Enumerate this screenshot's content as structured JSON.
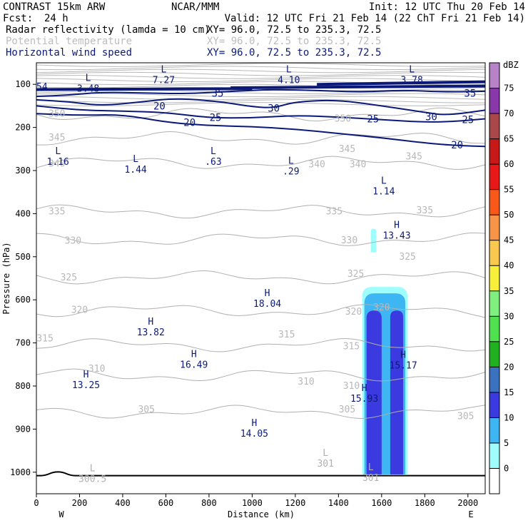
{
  "header": {
    "model": "CONTRAST 15km ARW",
    "center": "NCAR/MMM",
    "init": "Init: 12 UTC Thu 20 Feb 14",
    "fcst_label": "Fcst:",
    "fcst_value": "24 h",
    "valid": "Valid: 12 UTC Fri 21 Feb 14 (22 ChT Fri 21 Feb 14)",
    "fields": [
      {
        "name": "Radar reflectivity (lamda = 10 cm)",
        "xy": "XY=  96.0, 72.5 to 235.3, 72.5",
        "color": "#000000"
      },
      {
        "name": "Potential temperature",
        "xy": "XY=  96.0, 72.5 to 235.3, 72.5",
        "color": "#bdbdbd"
      },
      {
        "name": "Horizontal wind speed",
        "xy": "XY=  96.0, 72.5 to 235.3, 72.5",
        "color": "#0b1a78"
      }
    ]
  },
  "chart_data": {
    "type": "heatmap",
    "xlabel": "Distance (km)",
    "ylabel": "Pressure (hPa)",
    "xlim": [
      0,
      2080
    ],
    "ylim": [
      1050,
      50
    ],
    "x_ticks": [
      0,
      200,
      400,
      600,
      800,
      1000,
      1200,
      1400,
      1600,
      1800,
      2000
    ],
    "y_ticks": [
      100,
      200,
      300,
      400,
      500,
      600,
      700,
      800,
      900,
      1000
    ],
    "x_end_labels": [
      "W",
      "E"
    ],
    "colorbar": {
      "unit": "dBZ",
      "levels": [
        "0",
        "5",
        "10",
        "15",
        "20",
        "25",
        "30",
        "35",
        "40",
        "45",
        "50",
        "55",
        "60",
        "65",
        "70",
        "75"
      ],
      "colors": [
        "#ffffff",
        "#9ffdfc",
        "#3fb6f4",
        "#3a3ae0",
        "#3a72c0",
        "#1fb11f",
        "#4fe14f",
        "#7fef7f",
        "#f8ef3a",
        "#f8c84f",
        "#f89448",
        "#f85818",
        "#e81818",
        "#c81818",
        "#a84848",
        "#8838a8",
        "#b882c8"
      ]
    },
    "potential_temperature": {
      "color": "#b0b0b0",
      "levels": [
        {
          "value": 350,
          "p": 170
        },
        {
          "value": 345,
          "p": 225
        },
        {
          "value": 340,
          "p": 282
        },
        {
          "value": 335,
          "p": 395
        },
        {
          "value": 330,
          "p": 460
        },
        {
          "value": 325,
          "p": 548
        },
        {
          "value": 320,
          "p": 625
        },
        {
          "value": 315,
          "p": 705
        },
        {
          "value": 310,
          "p": 775
        },
        {
          "value": 305,
          "p": 860
        }
      ],
      "labels": [
        {
          "text": "350",
          "x": 95,
          "p": 168
        },
        {
          "text": "350",
          "x": 1420,
          "p": 180
        },
        {
          "text": "345",
          "x": 95,
          "p": 224
        },
        {
          "text": "345",
          "x": 1440,
          "p": 250
        },
        {
          "text": "345",
          "x": 1750,
          "p": 268
        },
        {
          "text": "340",
          "x": 95,
          "p": 284
        },
        {
          "text": "340",
          "x": 1300,
          "p": 286
        },
        {
          "text": "340",
          "x": 1490,
          "p": 286
        },
        {
          "text": "335",
          "x": 95,
          "p": 395
        },
        {
          "text": "335",
          "x": 1380,
          "p": 395
        },
        {
          "text": "335",
          "x": 1800,
          "p": 393
        },
        {
          "text": "330",
          "x": 170,
          "p": 463
        },
        {
          "text": "330",
          "x": 1450,
          "p": 462
        },
        {
          "text": "325",
          "x": 150,
          "p": 548
        },
        {
          "text": "325",
          "x": 1480,
          "p": 540
        },
        {
          "text": "325",
          "x": 1720,
          "p": 500
        },
        {
          "text": "320",
          "x": 200,
          "p": 624
        },
        {
          "text": "320",
          "x": 1470,
          "p": 628
        },
        {
          "text": "320",
          "x": 1600,
          "p": 618
        },
        {
          "text": "315",
          "x": 40,
          "p": 690
        },
        {
          "text": "315",
          "x": 1160,
          "p": 681
        },
        {
          "text": "315",
          "x": 1460,
          "p": 708
        },
        {
          "text": "310",
          "x": 280,
          "p": 760
        },
        {
          "text": "310",
          "x": 1250,
          "p": 790
        },
        {
          "text": "310",
          "x": 1460,
          "p": 800
        },
        {
          "text": "305",
          "x": 510,
          "p": 855
        },
        {
          "text": "305",
          "x": 1440,
          "p": 855
        },
        {
          "text": "305",
          "x": 1990,
          "p": 870
        }
      ],
      "markers": [
        {
          "kind": "L",
          "value": "300.5",
          "x": 260,
          "p": 998
        },
        {
          "kind": "L",
          "value": "301",
          "x": 1340,
          "p": 962
        },
        {
          "kind": "L",
          "value": "301",
          "x": 1550,
          "p": 995
        }
      ]
    },
    "wind_speed": {
      "color": "#0b1a78",
      "levels": [
        20,
        25,
        30,
        35
      ],
      "labels": [
        {
          "text": "35",
          "x": 840,
          "p": 120
        },
        {
          "text": "35",
          "x": 2010,
          "p": 120
        },
        {
          "text": "30",
          "x": 1100,
          "p": 155
        },
        {
          "text": "30",
          "x": 1830,
          "p": 175
        },
        {
          "text": "25",
          "x": 830,
          "p": 177
        },
        {
          "text": "25",
          "x": 1560,
          "p": 180
        },
        {
          "text": "25",
          "x": 2000,
          "p": 182
        },
        {
          "text": "20",
          "x": 570,
          "p": 150
        },
        {
          "text": "20",
          "x": 710,
          "p": 188
        },
        {
          "text": "20",
          "x": 1950,
          "p": 240
        }
      ],
      "markers": [
        {
          "kind": "L",
          "value": "3.48",
          "x": 240,
          "p": 92
        },
        {
          "kind": "L",
          "value": "7.27",
          "x": 590,
          "p": 72
        },
        {
          "kind": "L",
          "value": "4.10",
          "x": 1170,
          "p": 72
        },
        {
          "kind": "L",
          "value": "3.78",
          "x": 1740,
          "p": 72
        },
        {
          "kind": "",
          "value": "54",
          "x": 0,
          "p": 106
        },
        {
          "kind": "L",
          "value": "1.16",
          "x": 100,
          "p": 262
        },
        {
          "kind": "L",
          "value": "1.44",
          "x": 460,
          "p": 280
        },
        {
          "kind": "L",
          "value": ".63",
          "x": 820,
          "p": 262
        },
        {
          "kind": "L",
          "value": ".29",
          "x": 1180,
          "p": 284
        },
        {
          "kind": "L",
          "value": "1.14",
          "x": 1610,
          "p": 331
        },
        {
          "kind": "H",
          "value": "13.43",
          "x": 1670,
          "p": 433
        },
        {
          "kind": "H",
          "value": "18.04",
          "x": 1070,
          "p": 591
        },
        {
          "kind": "H",
          "value": "13.82",
          "x": 530,
          "p": 658
        },
        {
          "kind": "H",
          "value": "16.49",
          "x": 730,
          "p": 733
        },
        {
          "kind": "H",
          "value": "15.17",
          "x": 1700,
          "p": 735
        },
        {
          "kind": "H",
          "value": "13.25",
          "x": 230,
          "p": 780
        },
        {
          "kind": "H",
          "value": "15.93",
          "x": 1520,
          "p": 812
        },
        {
          "kind": "H",
          "value": "14.05",
          "x": 1010,
          "p": 893
        }
      ]
    },
    "reflectivity_cells": [
      {
        "dbz": 5,
        "x0": 1510,
        "x1": 1720,
        "p_top": 570,
        "p_bot": 1005
      },
      {
        "dbz": 10,
        "x0": 1520,
        "x1": 1710,
        "p_top": 585,
        "p_bot": 1005
      },
      {
        "dbz": 15,
        "x0": 1530,
        "x1": 1600,
        "p_top": 625,
        "p_bot": 1005
      },
      {
        "dbz": 15,
        "x0": 1640,
        "x1": 1700,
        "p_top": 625,
        "p_bot": 1005
      },
      {
        "dbz": 5,
        "x0": 1550,
        "x1": 1575,
        "p_top": 435,
        "p_bot": 490
      }
    ]
  }
}
